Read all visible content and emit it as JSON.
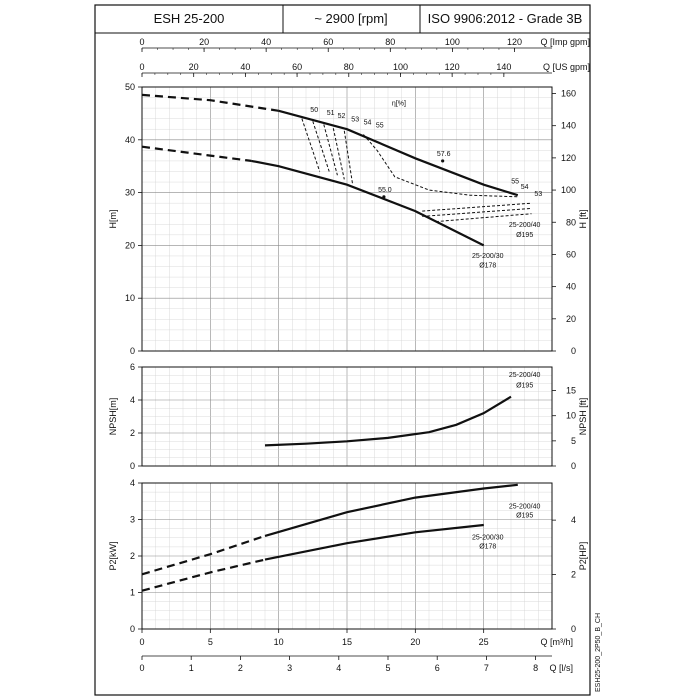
{
  "header": {
    "model": "ESH 25-200",
    "speed": "~ 2900 [rpm]",
    "standard": "ISO 9906:2012 - Grade 3B"
  },
  "side_code": "ESH25-200_2P50_B_CH",
  "chart_data": [
    {
      "type": "line",
      "name": "head",
      "ylabel": "H[m]",
      "ylabel_right": "H [ft]",
      "xlim": [
        0,
        30
      ],
      "ylim": [
        0,
        50
      ],
      "yticks": [
        0,
        10,
        20,
        30,
        40,
        50
      ],
      "yticks_right": [
        0,
        20,
        40,
        60,
        80,
        100,
        120,
        140,
        160
      ],
      "top_axes": [
        {
          "label": "Q [Imp gpm]",
          "ticks": [
            0,
            20,
            40,
            60,
            80,
            100,
            120
          ]
        },
        {
          "label": "Q [US gpm]",
          "ticks": [
            0,
            20,
            40,
            60,
            80,
            100,
            120,
            140
          ]
        }
      ],
      "series": [
        {
          "name": "25-200/40",
          "label_line2": "Ø195",
          "dashed_until": 10,
          "x": [
            0,
            5,
            10,
            15,
            20,
            25,
            27.5
          ],
          "y": [
            48.5,
            47.5,
            45.5,
            42,
            36.5,
            31.5,
            29.5
          ]
        },
        {
          "name": "25-200/30",
          "label_line2": "Ø178",
          "dashed_until": 8,
          "x": [
            0,
            5,
            8,
            10,
            15,
            20,
            25
          ],
          "y": [
            38.7,
            37,
            36,
            35,
            31.5,
            26.5,
            20
          ]
        }
      ],
      "efficiency": {
        "label": "η[%]",
        "iso_lines": [
          {
            "label": "50",
            "x": [
              11.7,
              13
            ],
            "y": [
              44,
              34
            ]
          },
          {
            "label": "51",
            "x": [
              12.5,
              13.7
            ],
            "y": [
              43.5,
              34
            ]
          },
          {
            "label": "52",
            "x": [
              13.3,
              14.3
            ],
            "y": [
              42.9,
              33.3
            ]
          },
          {
            "label": "53",
            "x": [
              14,
              14.8
            ],
            "y": [
              42.2,
              32.5
            ]
          },
          {
            "label": "54",
            "x": [
              14.8,
              15.4
            ],
            "y": [
              41.7,
              31.7
            ]
          },
          {
            "label": "55",
            "x": [
              16.2,
              17.2,
              18.5,
              21,
              24,
              27.5
            ],
            "y": [
              41,
              38,
              33,
              30.5,
              29.5,
              29.2
            ]
          }
        ],
        "upper_labels": [
          "50",
          "51",
          "52",
          "53",
          "54",
          "55"
        ],
        "right_labels": [
          "55",
          "54",
          "53"
        ],
        "right_lines": [
          {
            "x": [
              20.5,
              28.5
            ],
            "y": [
              26.5,
              28
            ]
          },
          {
            "x": [
              20.5,
              28.5
            ],
            "y": [
              25.5,
              27
            ]
          },
          {
            "x": [
              21.5,
              28.5
            ],
            "y": [
              24.5,
              26
            ]
          }
        ],
        "best_points": [
          {
            "label": "57.6",
            "x": 22,
            "y": 36
          },
          {
            "label": "55.0",
            "x": 17.7,
            "y": 29.2
          }
        ]
      }
    },
    {
      "type": "line",
      "name": "npsh",
      "ylabel": "NPSH[m]",
      "ylabel_right": "NPSH [ft]",
      "xlim": [
        0,
        30
      ],
      "ylim": [
        0,
        6
      ],
      "yticks": [
        0,
        2,
        4,
        6
      ],
      "yticks_right": [
        0,
        5,
        10,
        15
      ],
      "series": [
        {
          "name": "25-200/40",
          "label_line2": "Ø195",
          "x": [
            9,
            12,
            15,
            18,
            21,
            23,
            25,
            27
          ],
          "y": [
            1.25,
            1.35,
            1.5,
            1.7,
            2.05,
            2.5,
            3.2,
            4.2
          ]
        }
      ]
    },
    {
      "type": "line",
      "name": "power",
      "ylabel": "P2[kW]",
      "ylabel_right": "P2[HP]",
      "xlabel": "Q [m³/h]",
      "xlabel_2": "Q [l/s]",
      "xlim": [
        0,
        30
      ],
      "ylim": [
        0,
        4
      ],
      "yticks": [
        0,
        1,
        2,
        3,
        4
      ],
      "yticks_right": [
        0,
        2,
        4
      ],
      "xticks": [
        0,
        5,
        10,
        15,
        20,
        25
      ],
      "xticks_2": [
        0,
        1,
        2,
        3,
        4,
        5,
        6,
        7,
        8
      ],
      "series": [
        {
          "name": "25-200/40",
          "label_line2": "Ø195",
          "dashed_until": 9,
          "x": [
            0,
            5,
            9,
            15,
            20,
            25,
            27.5
          ],
          "y": [
            1.5,
            2.05,
            2.55,
            3.2,
            3.6,
            3.85,
            3.95
          ]
        },
        {
          "name": "25-200/30",
          "label_line2": "Ø178",
          "dashed_until": 9,
          "x": [
            0,
            5,
            9,
            15,
            20,
            25
          ],
          "y": [
            1.05,
            1.55,
            1.9,
            2.35,
            2.65,
            2.85
          ]
        }
      ]
    }
  ]
}
